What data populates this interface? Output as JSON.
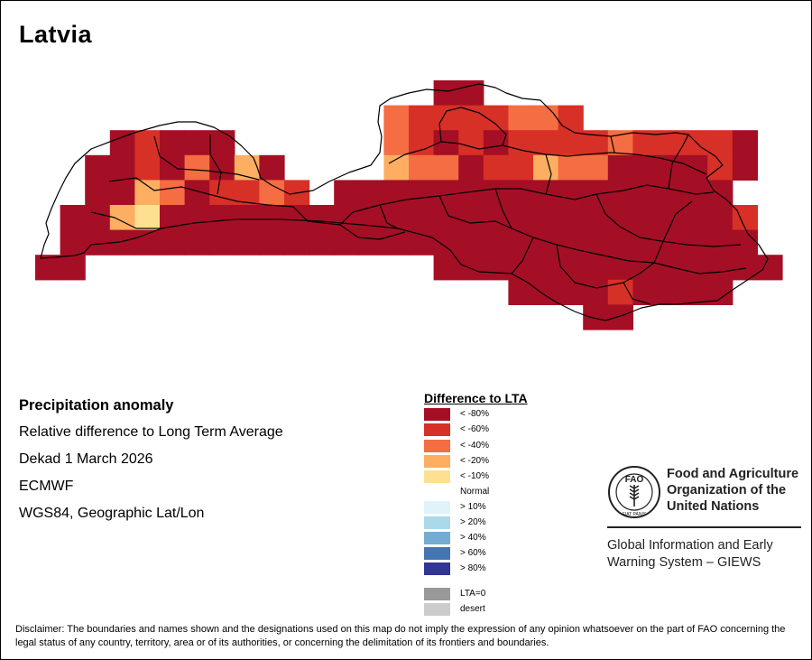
{
  "title": "Latvia",
  "info": {
    "heading": "Precipitation anomaly",
    "line1": "Relative difference to Long Term Average",
    "line2": "Dekad 1 March 2026",
    "line3": "ECMWF",
    "line4": "WGS84, Geographic Lat/Lon"
  },
  "legend": {
    "title": "Difference to LTA",
    "items": [
      {
        "label": "< -80%",
        "color": "#a50f25"
      },
      {
        "label": "< -60%",
        "color": "#d73027"
      },
      {
        "label": "< -40%",
        "color": "#f46d43"
      },
      {
        "label": "< -20%",
        "color": "#fdae61"
      },
      {
        "label": "< -10%",
        "color": "#fee090"
      },
      {
        "label": "Normal",
        "color": "#ffffff"
      },
      {
        "label": "> 10%",
        "color": "#e0f3f8"
      },
      {
        "label": "> 20%",
        "color": "#abd9e9"
      },
      {
        "label": "> 40%",
        "color": "#74add1"
      },
      {
        "label": "> 60%",
        "color": "#4575b4"
      },
      {
        "label": "> 80%",
        "color": "#313695"
      },
      {
        "label": "LTA=0",
        "color": "#999999"
      },
      {
        "label": "desert",
        "color": "#cccccc"
      }
    ]
  },
  "fao": {
    "name_line1": "Food and Agriculture",
    "name_line2": "Organization of the",
    "name_line3": "United Nations",
    "giews_line1": "Global Information and Early",
    "giews_line2": "Warning System – GIEWS",
    "logo_text": "FAO",
    "motto": "FIAT PANIS"
  },
  "disclaimer": "Disclaimer: The boundaries and names shown and the designations used on this map do not imply the expression of any opinion whatsoever on the part of FAO concerning the legal status of any country, territory, area or of its authorities, or concerning the delimitation of its frontiers and boundaries.",
  "map": {
    "class_colors": {
      "1": "#a50f25",
      "2": "#d73027",
      "3": "#f46d43",
      "4": "#fdae61",
      "5": "#fee090"
    }
  }
}
